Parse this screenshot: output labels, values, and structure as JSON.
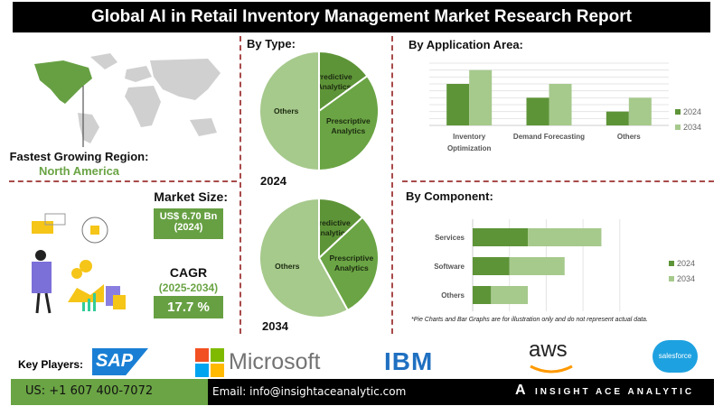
{
  "title": "Global AI in Retail Inventory Management Market Research Report",
  "region": {
    "label": "Fastest Growing Region:",
    "value": "North America"
  },
  "market_size": {
    "label": "Market Size:",
    "value": "US$ 6.70 Bn",
    "year": "(2024)"
  },
  "cagr": {
    "label": "CAGR",
    "period": "(2025-2034)",
    "value": "17.7 %"
  },
  "colors": {
    "dark_green": "#5e9438",
    "light_green": "#a6c98c",
    "mid_green": "#6aa444",
    "accent": "#67a043",
    "divider": "#a84a4a"
  },
  "chart_data": [
    {
      "type": "pie",
      "title": "By Type:",
      "label": "2024",
      "slices": [
        {
          "name": "Predictive Analytics",
          "value": 15
        },
        {
          "name": "Prescriptive Analytics",
          "value": 35
        },
        {
          "name": "Others",
          "value": 50
        }
      ]
    },
    {
      "type": "pie",
      "label": "2034",
      "slices": [
        {
          "name": "Predictive Analytics",
          "value": 13
        },
        {
          "name": "Prescriptive Analytics",
          "value": 29
        },
        {
          "name": "Others",
          "value": 58
        }
      ]
    },
    {
      "type": "bar",
      "title": "By  Application Area:",
      "categories": [
        "Inventory Optimization",
        "Demand Forecasting",
        "Others"
      ],
      "series": [
        {
          "name": "2024",
          "values": [
            6,
            4,
            2
          ]
        },
        {
          "name": "2034",
          "values": [
            8,
            6,
            4
          ]
        }
      ],
      "ylim": [
        0,
        9
      ],
      "grid": true,
      "legend": "right"
    },
    {
      "type": "bar",
      "orientation": "horizontal",
      "stacked": true,
      "title": "By Component:",
      "categories": [
        "Services",
        "Software",
        "Others"
      ],
      "series": [
        {
          "name": "2024",
          "values": [
            1.5,
            1,
            0.5
          ]
        },
        {
          "name": "2034",
          "values": [
            2,
            1.5,
            1
          ]
        }
      ],
      "xlim": [
        0,
        4
      ],
      "grid": true,
      "legend": "right"
    }
  ],
  "note": "*Pie Charts and Bar Graphs are for illustration only and do not represent actual data.",
  "key_players": {
    "label": "Key Players:",
    "logos": [
      "SAP",
      "Microsoft",
      "IBM",
      "aws",
      "salesforce"
    ]
  },
  "footer": {
    "phone": "US: +1 607 400-7072",
    "email": "Email: info@insightaceanalytic.com",
    "brand": "INSIGHT ACE ANALYTIC"
  }
}
